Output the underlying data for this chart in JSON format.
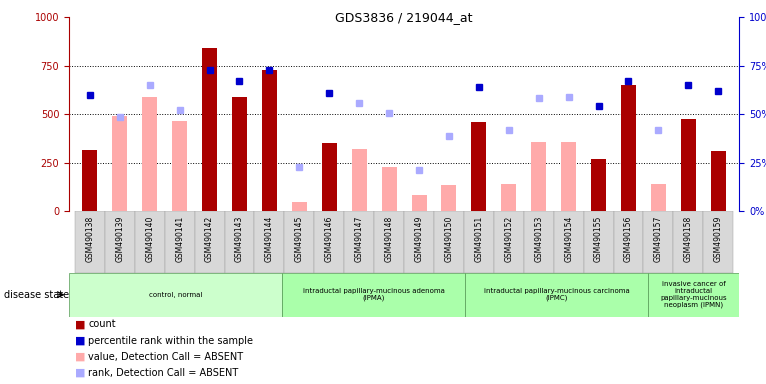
{
  "title": "GDS3836 / 219044_at",
  "samples": [
    "GSM490138",
    "GSM490139",
    "GSM490140",
    "GSM490141",
    "GSM490142",
    "GSM490143",
    "GSM490144",
    "GSM490145",
    "GSM490146",
    "GSM490147",
    "GSM490148",
    "GSM490149",
    "GSM490150",
    "GSM490151",
    "GSM490152",
    "GSM490153",
    "GSM490154",
    "GSM490155",
    "GSM490156",
    "GSM490157",
    "GSM490158",
    "GSM490159"
  ],
  "count": [
    315,
    null,
    null,
    null,
    840,
    590,
    730,
    null,
    350,
    null,
    null,
    null,
    null,
    460,
    null,
    null,
    null,
    270,
    650,
    null,
    475,
    310
  ],
  "value_absent": [
    null,
    490,
    590,
    465,
    null,
    null,
    null,
    45,
    null,
    320,
    230,
    85,
    135,
    null,
    140,
    355,
    355,
    null,
    null,
    140,
    null,
    null
  ],
  "percentile_present": [
    60,
    null,
    null,
    null,
    73,
    67,
    73,
    null,
    61,
    null,
    null,
    null,
    null,
    64,
    null,
    null,
    null,
    54,
    67,
    null,
    65,
    62
  ],
  "rank_absent": [
    null,
    485,
    650,
    520,
    null,
    null,
    null,
    230,
    null,
    560,
    505,
    215,
    390,
    null,
    420,
    585,
    590,
    null,
    null,
    420,
    null,
    null
  ],
  "disease_groups": [
    {
      "label": "control, normal",
      "start": 0,
      "end": 7,
      "color": "#ccffcc"
    },
    {
      "label": "intraductal papillary-mucinous adenoma\n(IPMA)",
      "start": 7,
      "end": 13,
      "color": "#aaffaa"
    },
    {
      "label": "intraductal papillary-mucinous carcinoma\n(IPMC)",
      "start": 13,
      "end": 19,
      "color": "#aaffaa"
    },
    {
      "label": "invasive cancer of\nintraductal\npapillary-mucinous\nneoplasm (IPMN)",
      "start": 19,
      "end": 22,
      "color": "#aaffaa"
    }
  ],
  "ylim_left": [
    0,
    1000
  ],
  "yticks_left": [
    0,
    250,
    500,
    750,
    1000
  ],
  "yticks_right": [
    0,
    25,
    50,
    75,
    100
  ],
  "count_color": "#aa0000",
  "value_absent_color": "#ffaaaa",
  "percentile_color": "#0000cc",
  "rank_absent_color": "#aaaaff",
  "bar_width": 0.5
}
